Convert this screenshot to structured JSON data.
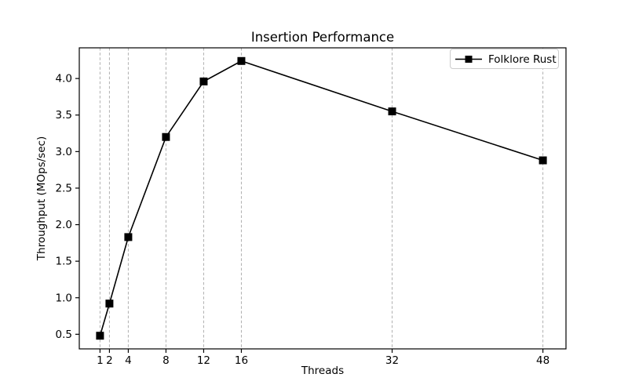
{
  "chart_data": {
    "type": "line",
    "title": "Insertion Performance",
    "xlabel": "Threads",
    "ylabel": "Throughput (MOps/sec)",
    "x": [
      1,
      2,
      4,
      8,
      12,
      16,
      32,
      48
    ],
    "series": [
      {
        "name": "Folklore Rust",
        "values": [
          0.48,
          0.92,
          1.83,
          3.2,
          3.96,
          4.24,
          3.55,
          2.88
        ],
        "color": "#000000",
        "marker": "square"
      }
    ],
    "xticks": [
      1,
      2,
      4,
      8,
      12,
      16,
      32,
      48
    ],
    "yticks": [
      0.5,
      1.0,
      1.5,
      2.0,
      2.5,
      3.0,
      3.5,
      4.0
    ],
    "xlim": [
      -1.2,
      50.45
    ],
    "ylim": [
      0.3,
      4.42
    ],
    "grid": "vertical-dashed",
    "grid_color": "#b0b0b0",
    "axis_color": "#000000",
    "legend_position": "upper right",
    "background": "#ffffff"
  }
}
